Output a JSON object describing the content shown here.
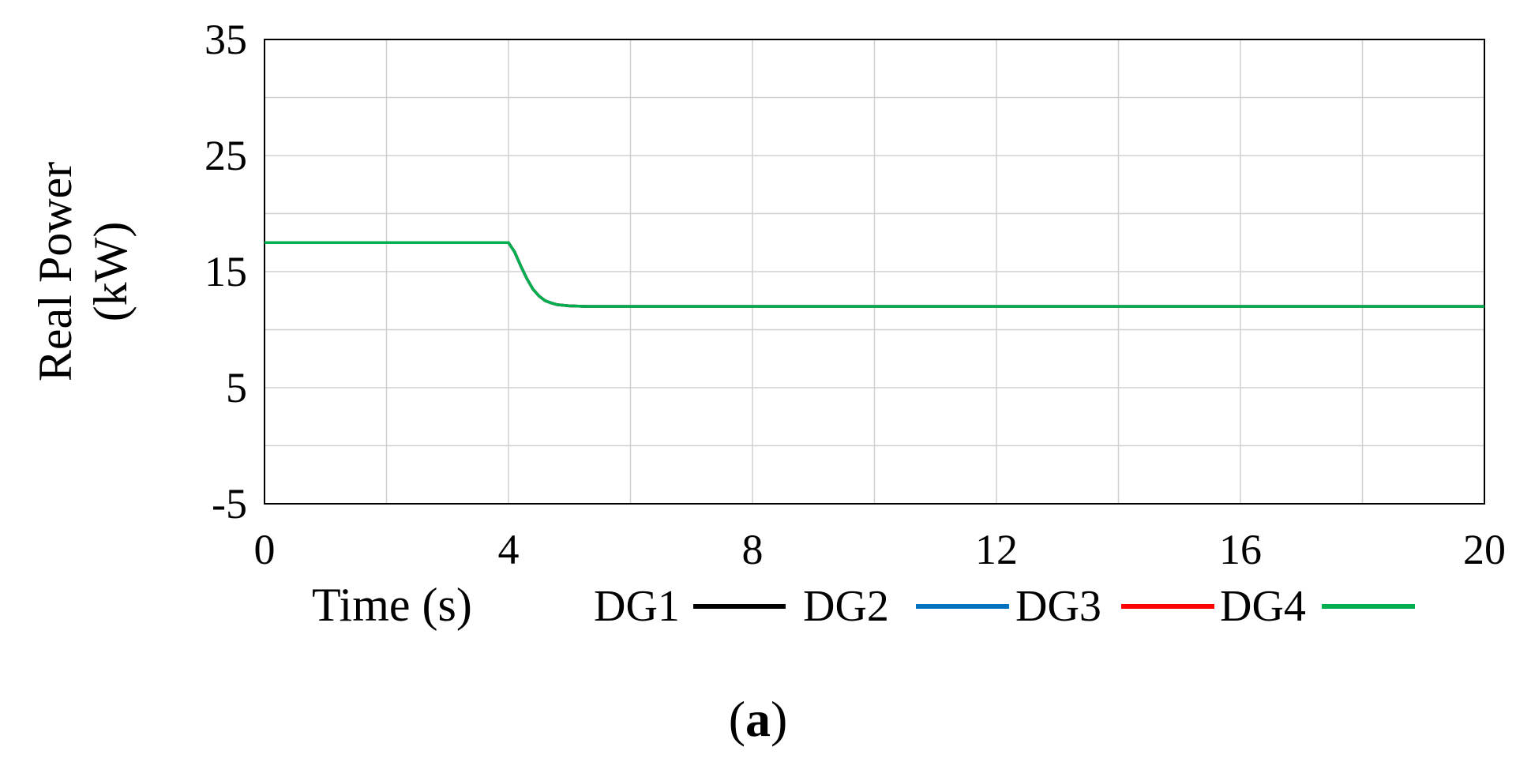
{
  "caption_open": "(",
  "caption_letter": "a",
  "caption_close": ")",
  "chart_data": {
    "type": "line",
    "title": "",
    "xlabel": "Time (s)",
    "ylabel_line1": "Real Power",
    "ylabel_line2": "(kW)",
    "xlim": [
      0,
      20
    ],
    "ylim": [
      -5,
      35
    ],
    "xticks": [
      0,
      4,
      8,
      12,
      16,
      20
    ],
    "xtick_labels": [
      "0",
      "4",
      "8",
      "12",
      "16",
      "20"
    ],
    "yticks": [
      -5,
      5,
      15,
      25,
      35
    ],
    "ytick_labels": [
      "-5",
      "5",
      "15",
      "25",
      "35"
    ],
    "minor_xgrid": [
      2,
      6,
      10,
      14,
      18
    ],
    "minor_ygrid": [
      0,
      10,
      20,
      30
    ],
    "grid": true,
    "legend_position": "bottom",
    "series": [
      {
        "name": "DG1",
        "color": "#000000",
        "x": [
          0,
          4.0,
          4.1,
          4.2,
          4.3,
          4.4,
          4.5,
          4.6,
          4.7,
          4.8,
          5.0,
          5.3,
          20
        ],
        "y": [
          17.5,
          17.5,
          16.7,
          15.5,
          14.4,
          13.5,
          12.9,
          12.5,
          12.3,
          12.15,
          12.05,
          12.0,
          12.0
        ]
      },
      {
        "name": "DG2",
        "color": "#0070c0",
        "x": [
          0,
          4.0,
          4.1,
          4.2,
          4.3,
          4.4,
          4.5,
          4.6,
          4.7,
          4.8,
          5.0,
          5.3,
          20
        ],
        "y": [
          17.5,
          17.5,
          16.7,
          15.5,
          14.4,
          13.5,
          12.9,
          12.5,
          12.3,
          12.15,
          12.05,
          12.0,
          12.0
        ]
      },
      {
        "name": "DG3",
        "color": "#ff0000",
        "x": [
          0,
          4.0,
          4.1,
          4.2,
          4.3,
          4.4,
          4.5,
          4.6,
          4.7,
          4.8,
          5.0,
          5.3,
          20
        ],
        "y": [
          17.5,
          17.5,
          16.7,
          15.5,
          14.4,
          13.5,
          12.9,
          12.5,
          12.3,
          12.15,
          12.05,
          12.0,
          12.0
        ]
      },
      {
        "name": "DG4",
        "color": "#00b050",
        "x": [
          0,
          4.0,
          4.1,
          4.2,
          4.3,
          4.4,
          4.5,
          4.6,
          4.7,
          4.8,
          5.0,
          5.3,
          20
        ],
        "y": [
          17.5,
          17.5,
          16.7,
          15.5,
          14.4,
          13.5,
          12.9,
          12.5,
          12.3,
          12.15,
          12.05,
          12.0,
          12.0
        ]
      }
    ]
  }
}
